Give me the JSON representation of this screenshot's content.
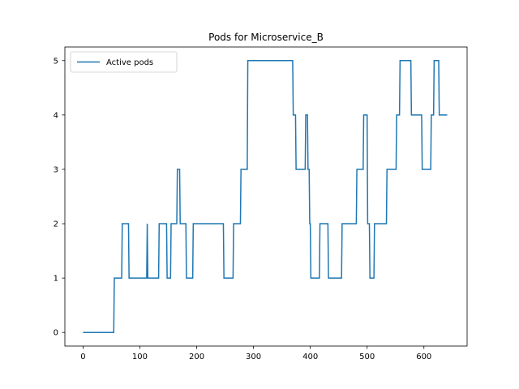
{
  "chart_data": {
    "type": "line",
    "title": "Pods for Microservice_B",
    "xlabel": "",
    "ylabel": "",
    "xlim": [
      -32,
      676
    ],
    "ylim": [
      -0.25,
      5.25
    ],
    "xticks": [
      0,
      100,
      200,
      300,
      400,
      500,
      600
    ],
    "yticks": [
      0,
      1,
      2,
      3,
      4,
      5
    ],
    "xtick_labels": [
      "0",
      "100",
      "200",
      "300",
      "400",
      "500",
      "600"
    ],
    "ytick_labels": [
      "0",
      "1",
      "2",
      "3",
      "4",
      "5"
    ],
    "grid": false,
    "legend": {
      "placement": "upper-left"
    },
    "series": [
      {
        "name": "Active pods",
        "color": "#1f77b4",
        "step": true,
        "points": [
          [
            0,
            0
          ],
          [
            54,
            0
          ],
          [
            55,
            1
          ],
          [
            68,
            1
          ],
          [
            69,
            2
          ],
          [
            80,
            2
          ],
          [
            81,
            1
          ],
          [
            112,
            1
          ],
          [
            113,
            2
          ],
          [
            114,
            1
          ],
          [
            115,
            1
          ],
          [
            116,
            1
          ],
          [
            133,
            1
          ],
          [
            134,
            2
          ],
          [
            147,
            2
          ],
          [
            148,
            1
          ],
          [
            154,
            1
          ],
          [
            155,
            2
          ],
          [
            165,
            2
          ],
          [
            166,
            3
          ],
          [
            170,
            3
          ],
          [
            171,
            2
          ],
          [
            181,
            2
          ],
          [
            182,
            1
          ],
          [
            193,
            1
          ],
          [
            194,
            2
          ],
          [
            247,
            2
          ],
          [
            248,
            1
          ],
          [
            264,
            1
          ],
          [
            265,
            2
          ],
          [
            277,
            2
          ],
          [
            278,
            3
          ],
          [
            289,
            3
          ],
          [
            290,
            5
          ],
          [
            369,
            5
          ],
          [
            370,
            4
          ],
          [
            374,
            4
          ],
          [
            375,
            3
          ],
          [
            391,
            3
          ],
          [
            392,
            4
          ],
          [
            395,
            4
          ],
          [
            396,
            3
          ],
          [
            398,
            3
          ],
          [
            399,
            2
          ],
          [
            400,
            2
          ],
          [
            401,
            1
          ],
          [
            416,
            1
          ],
          [
            417,
            2
          ],
          [
            431,
            2
          ],
          [
            432,
            1
          ],
          [
            455,
            1
          ],
          [
            456,
            2
          ],
          [
            481,
            2
          ],
          [
            482,
            3
          ],
          [
            493,
            3
          ],
          [
            494,
            4
          ],
          [
            500,
            4
          ],
          [
            501,
            2
          ],
          [
            504,
            2
          ],
          [
            505,
            1
          ],
          [
            512,
            1
          ],
          [
            513,
            2
          ],
          [
            534,
            2
          ],
          [
            535,
            3
          ],
          [
            551,
            3
          ],
          [
            552,
            4
          ],
          [
            557,
            4
          ],
          [
            558,
            5
          ],
          [
            577,
            5
          ],
          [
            578,
            4
          ],
          [
            596,
            4
          ],
          [
            597,
            3
          ],
          [
            612,
            3
          ],
          [
            613,
            4
          ],
          [
            617,
            4
          ],
          [
            618,
            5
          ],
          [
            626,
            5
          ],
          [
            627,
            4
          ],
          [
            641,
            4
          ]
        ]
      }
    ]
  }
}
